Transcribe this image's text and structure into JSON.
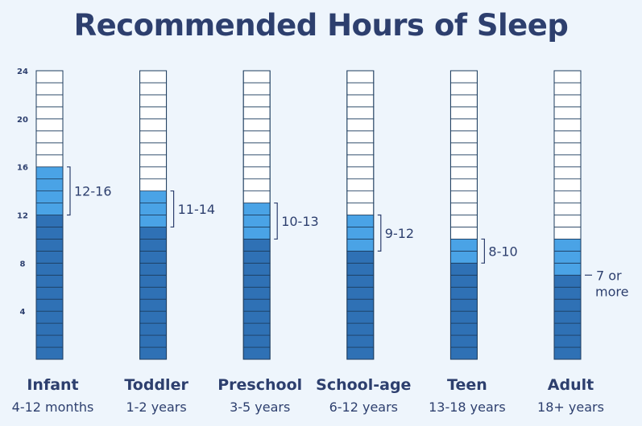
{
  "chart_data": {
    "type": "bar",
    "title": "Recommended Hours of Sleep",
    "ylim": [
      0,
      24
    ],
    "yticks": [
      4,
      8,
      12,
      16,
      20,
      24
    ],
    "categories": [
      {
        "name": "Infant",
        "age": "4-12 months",
        "min": 12,
        "max": 16,
        "range_label": [
          "12-16"
        ]
      },
      {
        "name": "Toddler",
        "age": "1-2 years",
        "min": 11,
        "max": 14,
        "range_label": [
          "11-14"
        ]
      },
      {
        "name": "Preschool",
        "age": "3-5 years",
        "min": 10,
        "max": 13,
        "range_label": [
          "10-13"
        ]
      },
      {
        "name": "School-age",
        "age": "6-12 years",
        "min": 9,
        "max": 12,
        "range_label": [
          "9-12"
        ]
      },
      {
        "name": "Teen",
        "age": "13-18 years",
        "min": 8,
        "max": 10,
        "range_label": [
          "8-10"
        ]
      },
      {
        "name": "Adult",
        "age": "18+ years",
        "min": 7,
        "max": 10,
        "range_label": [
          "7 or",
          "more"
        ]
      }
    ],
    "colors": {
      "base": "#2f71b5",
      "range": "#4aa3e6",
      "empty": "#ffffff",
      "cell_line": "#1d3c5e",
      "text": "#2d3f6e"
    }
  }
}
